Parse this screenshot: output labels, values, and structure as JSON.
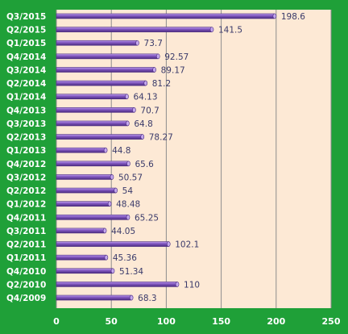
{
  "chart_data": {
    "type": "bar",
    "orientation": "horizontal",
    "categories": [
      "Q3/2015",
      "Q2/2015",
      "Q1/2015",
      "Q4/2014",
      "Q3/2014",
      "Q2/2014",
      "Q1/2014",
      "Q4/2013",
      "Q3/2013",
      "Q2/2013",
      "Q1/2013",
      "Q4/2012",
      "Q3/2012",
      "Q2/2012",
      "Q1/2012",
      "Q4/2011",
      "Q3/2011",
      "Q2/2011",
      "Q1/2011",
      "Q4/2010",
      "Q2/2010",
      "Q4/2009"
    ],
    "values": [
      198.6,
      141.5,
      73.7,
      92.57,
      89.17,
      81.2,
      64.13,
      70.7,
      64.8,
      78.27,
      44.8,
      65.6,
      50.57,
      54,
      48.48,
      65.25,
      44.05,
      102.1,
      45.36,
      51.34,
      110,
      68.3
    ],
    "value_labels": [
      "198.6",
      "141.5",
      "73.7",
      "92.57",
      "89.17",
      "81.2",
      "64.13",
      "70.7",
      "64.8",
      "78.27",
      "44.8",
      "65.6",
      "50.57",
      "54",
      "48.48",
      "65.25",
      "44.05",
      "102.1",
      "45.36",
      "51.34",
      "110",
      "68.3"
    ],
    "xlim": [
      0,
      250
    ],
    "xticks": [
      0,
      50,
      100,
      150,
      200,
      250
    ],
    "xtick_labels": [
      "0",
      "50",
      "100",
      "150",
      "200",
      "250"
    ],
    "grid": "vertical",
    "legend": "none",
    "title": "",
    "xlabel": "",
    "ylabel": "",
    "colors": {
      "background": "#1fa038",
      "plot_area": "#fde9d5",
      "bar": "#8a5fc8",
      "bar_highlight": "#c4a8ee",
      "bar_shadow": "#4a2a80",
      "gridline": "#8c8c8c",
      "category_label": "#ffffff",
      "value_label": "#3a3a6a",
      "tick_label": "#ffffff"
    }
  }
}
